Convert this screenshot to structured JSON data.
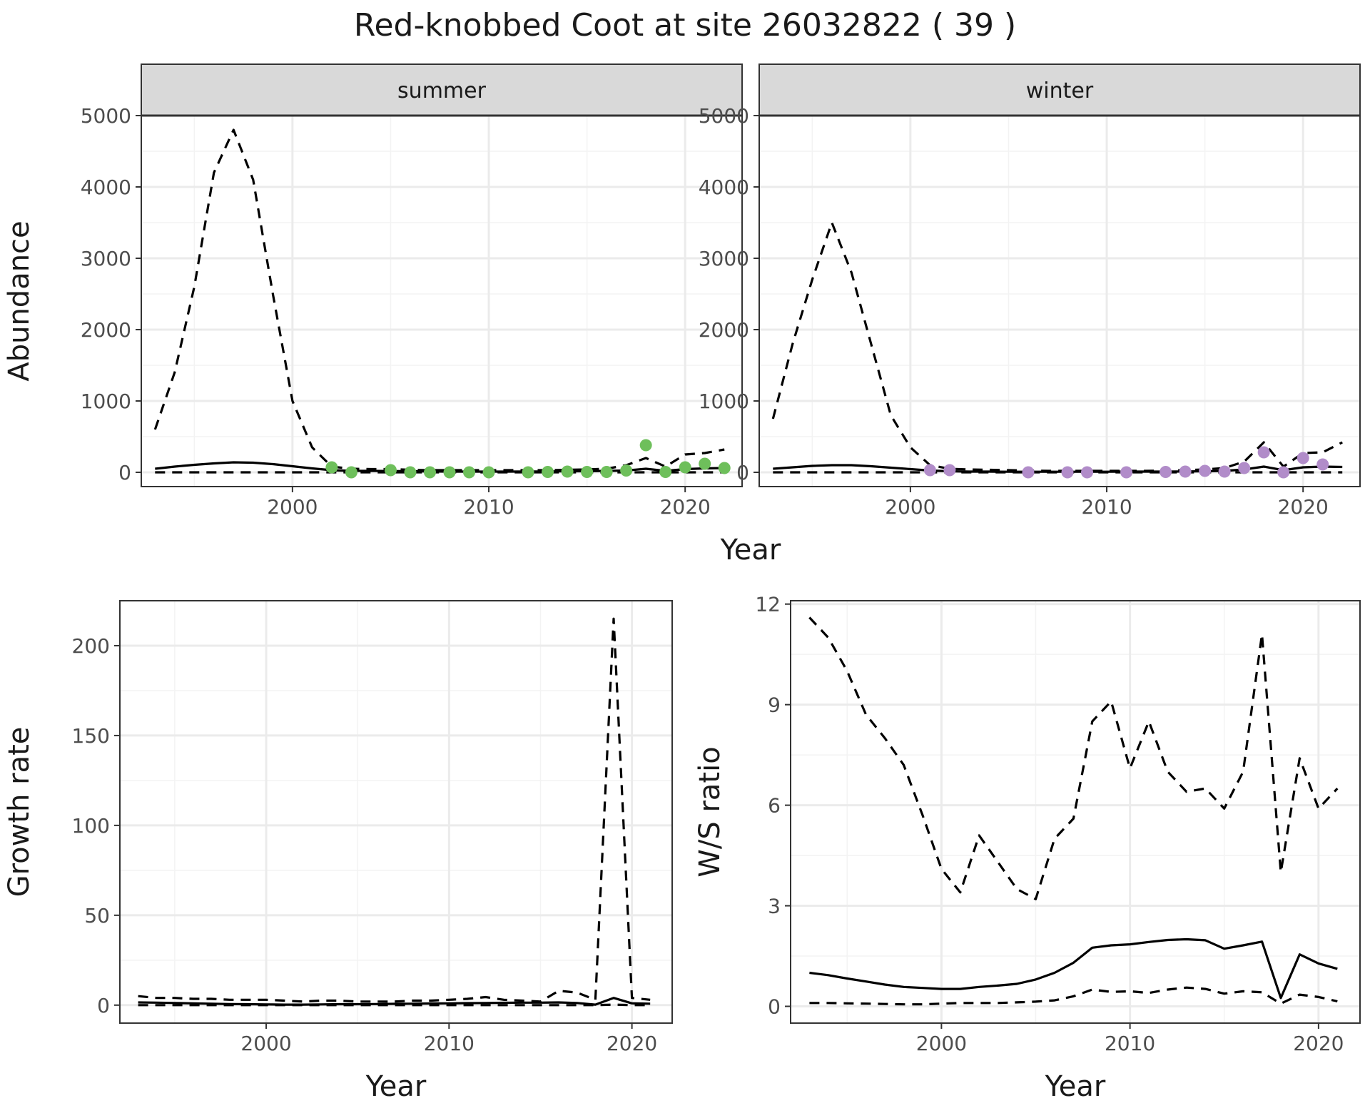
{
  "figure": {
    "title": "Red-knobbed Coot at site 26032822 ( 39 )",
    "colors": {
      "summer_points": "#6ebf5b",
      "winter_points": "#b18cc9",
      "strip_bg": "#d9d9d9",
      "lines": "#000000"
    }
  },
  "chart_data": [
    {
      "id": "abundance_summer",
      "type": "line",
      "facet": "summer",
      "xlabel": "Year",
      "ylabel": "Abundance",
      "xlim": [
        1992.3,
        2022.9
      ],
      "ylim": [
        -200,
        5000
      ],
      "xticks": [
        2000,
        2010,
        2020
      ],
      "yticks": [
        0,
        1000,
        2000,
        3000,
        4000,
        5000
      ],
      "grid": true,
      "series": [
        {
          "style": "solid",
          "x": [
            1993,
            1994,
            1995,
            1996,
            1997,
            1998,
            1999,
            2000,
            2001,
            2002,
            2003,
            2004,
            2005,
            2006,
            2007,
            2008,
            2009,
            2010,
            2011,
            2012,
            2013,
            2014,
            2015,
            2016,
            2017,
            2018,
            2019,
            2020,
            2021,
            2022
          ],
          "y": [
            50,
            80,
            105,
            125,
            140,
            135,
            115,
            85,
            55,
            30,
            20,
            20,
            18,
            15,
            12,
            10,
            10,
            10,
            10,
            12,
            12,
            15,
            15,
            20,
            25,
            50,
            20,
            45,
            55,
            60
          ]
        },
        {
          "style": "dashed",
          "x": [
            1993,
            1994,
            1995,
            1996,
            1997,
            1998,
            1999,
            2000,
            2001,
            2002,
            2003,
            2004,
            2005,
            2006,
            2007,
            2008,
            2009,
            2010,
            2011,
            2012,
            2013,
            2014,
            2015,
            2016,
            2017,
            2018,
            2019,
            2020,
            2021,
            2022
          ],
          "y": [
            600,
            1400,
            2600,
            4200,
            4800,
            4100,
            2500,
            1000,
            350,
            80,
            50,
            45,
            45,
            35,
            30,
            30,
            30,
            30,
            30,
            30,
            30,
            35,
            40,
            50,
            100,
            200,
            80,
            250,
            270,
            320
          ]
        },
        {
          "style": "dashed",
          "x": [
            1993,
            1995,
            2000,
            2005,
            2010,
            2015,
            2020,
            2022
          ],
          "y": [
            0,
            0,
            0,
            0,
            0,
            0,
            0,
            0
          ]
        }
      ],
      "points": {
        "x": [
          2002,
          2003,
          2005,
          2006,
          2007,
          2008,
          2009,
          2010,
          2012,
          2013,
          2014,
          2015,
          2016,
          2017,
          2018,
          2019,
          2020,
          2021,
          2022
        ],
        "y": [
          70,
          0,
          30,
          0,
          0,
          0,
          0,
          0,
          0,
          5,
          10,
          5,
          5,
          25,
          380,
          5,
          70,
          120,
          60
        ]
      }
    },
    {
      "id": "abundance_winter",
      "type": "line",
      "facet": "winter",
      "xlabel": "Year",
      "ylabel": "Abundance",
      "xlim": [
        1992.3,
        2022.9
      ],
      "ylim": [
        -200,
        5000
      ],
      "xticks": [
        2000,
        2010,
        2020
      ],
      "yticks": [
        0,
        1000,
        2000,
        3000,
        4000,
        5000
      ],
      "grid": true,
      "series": [
        {
          "style": "solid",
          "x": [
            1993,
            1994,
            1995,
            1996,
            1997,
            1998,
            1999,
            2000,
            2001,
            2002,
            2003,
            2004,
            2005,
            2006,
            2007,
            2008,
            2009,
            2010,
            2011,
            2012,
            2013,
            2014,
            2015,
            2016,
            2017,
            2018,
            2019,
            2020,
            2021,
            2022
          ],
          "y": [
            50,
            70,
            90,
            100,
            100,
            85,
            65,
            45,
            25,
            15,
            10,
            10,
            8,
            8,
            8,
            8,
            8,
            8,
            10,
            10,
            10,
            12,
            15,
            20,
            40,
            80,
            30,
            70,
            80,
            75
          ]
        },
        {
          "style": "dashed",
          "x": [
            1993,
            1994,
            1995,
            1996,
            1997,
            1998,
            1999,
            2000,
            2001,
            2002,
            2003,
            2004,
            2005,
            2006,
            2007,
            2008,
            2009,
            2010,
            2011,
            2012,
            2013,
            2014,
            2015,
            2016,
            2017,
            2018,
            2019,
            2020,
            2021,
            2022
          ],
          "y": [
            750,
            1800,
            2700,
            3500,
            2800,
            1800,
            800,
            350,
            100,
            50,
            40,
            35,
            30,
            25,
            20,
            20,
            20,
            20,
            20,
            20,
            25,
            30,
            40,
            60,
            150,
            420,
            80,
            270,
            280,
            420
          ]
        },
        {
          "style": "dashed",
          "x": [
            1993,
            1995,
            2000,
            2005,
            2010,
            2015,
            2020,
            2022
          ],
          "y": [
            0,
            0,
            0,
            0,
            0,
            0,
            0,
            0
          ]
        }
      ],
      "points": {
        "x": [
          2001,
          2002,
          2006,
          2008,
          2009,
          2011,
          2013,
          2014,
          2015,
          2016,
          2017,
          2018,
          2019,
          2020,
          2021
        ],
        "y": [
          30,
          30,
          0,
          0,
          0,
          0,
          5,
          10,
          20,
          10,
          60,
          280,
          0,
          200,
          110
        ]
      }
    },
    {
      "id": "growth_rate",
      "type": "line",
      "xlabel": "Year",
      "ylabel": "Growth rate",
      "xlim": [
        1992.0,
        2022.2
      ],
      "ylim": [
        -10,
        225
      ],
      "xticks": [
        2000,
        2010,
        2020
      ],
      "yticks": [
        0,
        50,
        100,
        150,
        200
      ],
      "grid": true,
      "series": [
        {
          "style": "solid",
          "x": [
            1993,
            1994,
            1995,
            1996,
            1997,
            1998,
            1999,
            2000,
            2001,
            2002,
            2003,
            2004,
            2005,
            2006,
            2007,
            2008,
            2009,
            2010,
            2011,
            2012,
            2013,
            2014,
            2015,
            2016,
            2017,
            2018,
            2019,
            2020,
            2021
          ],
          "y": [
            1.5,
            1.4,
            1.2,
            1.0,
            0.8,
            0.6,
            0.5,
            0.4,
            0.3,
            0.3,
            0.4,
            0.5,
            0.5,
            0.6,
            0.7,
            0.8,
            0.9,
            1.0,
            1.1,
            1.2,
            1.3,
            1.4,
            1.4,
            1.5,
            1.2,
            0.3,
            4.0,
            1.0,
            0.8
          ]
        },
        {
          "style": "dashed",
          "x": [
            1993,
            1994,
            1995,
            1996,
            1997,
            1998,
            1999,
            2000,
            2001,
            2002,
            2003,
            2004,
            2005,
            2006,
            2007,
            2008,
            2009,
            2010,
            2011,
            2012,
            2013,
            2014,
            2015,
            2016,
            2017,
            2018,
            2019,
            2020,
            2021
          ],
          "y": [
            5,
            4,
            4,
            3.5,
            3.5,
            3,
            3,
            3,
            2.5,
            2,
            2.5,
            2.5,
            2,
            2,
            2,
            2.5,
            2.5,
            3,
            3.5,
            4.5,
            3,
            2.5,
            2,
            8,
            7,
            3,
            215,
            4,
            3
          ]
        },
        {
          "style": "dashed",
          "x": [
            1993,
            1995,
            2000,
            2005,
            2010,
            2015,
            2018,
            2019,
            2020,
            2021
          ],
          "y": [
            0,
            0,
            0,
            0,
            0,
            0,
            0,
            0.3,
            0,
            0
          ]
        }
      ]
    },
    {
      "id": "ws_ratio",
      "type": "line",
      "xlabel": "Year",
      "ylabel": "W/S ratio",
      "xlim": [
        1992.0,
        2022.2
      ],
      "ylim": [
        -0.5,
        12.1
      ],
      "xticks": [
        2000,
        2010,
        2020
      ],
      "yticks": [
        0,
        3,
        6,
        9,
        12
      ],
      "grid": true,
      "series": [
        {
          "style": "solid",
          "x": [
            1993,
            1994,
            1995,
            1996,
            1997,
            1998,
            1999,
            2000,
            2001,
            2002,
            2003,
            2004,
            2005,
            2006,
            2007,
            2008,
            2009,
            2010,
            2011,
            2012,
            2013,
            2014,
            2015,
            2016,
            2017,
            2018,
            2019,
            2020,
            2021
          ],
          "y": [
            1.0,
            0.93,
            0.83,
            0.74,
            0.65,
            0.58,
            0.55,
            0.52,
            0.52,
            0.58,
            0.62,
            0.67,
            0.8,
            1.0,
            1.3,
            1.75,
            1.82,
            1.85,
            1.92,
            1.98,
            2.0,
            1.97,
            1.72,
            1.82,
            1.93,
            0.25,
            1.55,
            1.28,
            1.12
          ]
        },
        {
          "style": "dashed",
          "x": [
            1993,
            1994,
            1995,
            1996,
            1997,
            1998,
            1999,
            2000,
            2001,
            2002,
            2003,
            2004,
            2005,
            2006,
            2007,
            2008,
            2009,
            2010,
            2011,
            2012,
            2013,
            2014,
            2015,
            2016,
            2017,
            2018,
            2019,
            2020,
            2021
          ],
          "y": [
            11.6,
            11.0,
            10.0,
            8.7,
            8.0,
            7.2,
            5.7,
            4.1,
            3.4,
            5.1,
            4.3,
            3.5,
            3.2,
            5.0,
            5.6,
            8.5,
            9.1,
            7.1,
            8.5,
            7.0,
            6.4,
            6.5,
            5.9,
            7.0,
            11.1,
            4.0,
            7.4,
            5.9,
            6.5
          ]
        },
        {
          "style": "dashed",
          "x": [
            1993,
            1994,
            1995,
            1996,
            1997,
            1998,
            1999,
            2000,
            2001,
            2002,
            2003,
            2004,
            2005,
            2006,
            2007,
            2008,
            2009,
            2010,
            2011,
            2012,
            2013,
            2014,
            2015,
            2016,
            2017,
            2018,
            2019,
            2020,
            2021
          ],
          "y": [
            0.1,
            0.1,
            0.09,
            0.08,
            0.07,
            0.06,
            0.06,
            0.08,
            0.1,
            0.1,
            0.1,
            0.12,
            0.14,
            0.18,
            0.3,
            0.5,
            0.43,
            0.45,
            0.4,
            0.5,
            0.56,
            0.52,
            0.38,
            0.45,
            0.42,
            0.08,
            0.35,
            0.28,
            0.15
          ]
        }
      ]
    }
  ]
}
